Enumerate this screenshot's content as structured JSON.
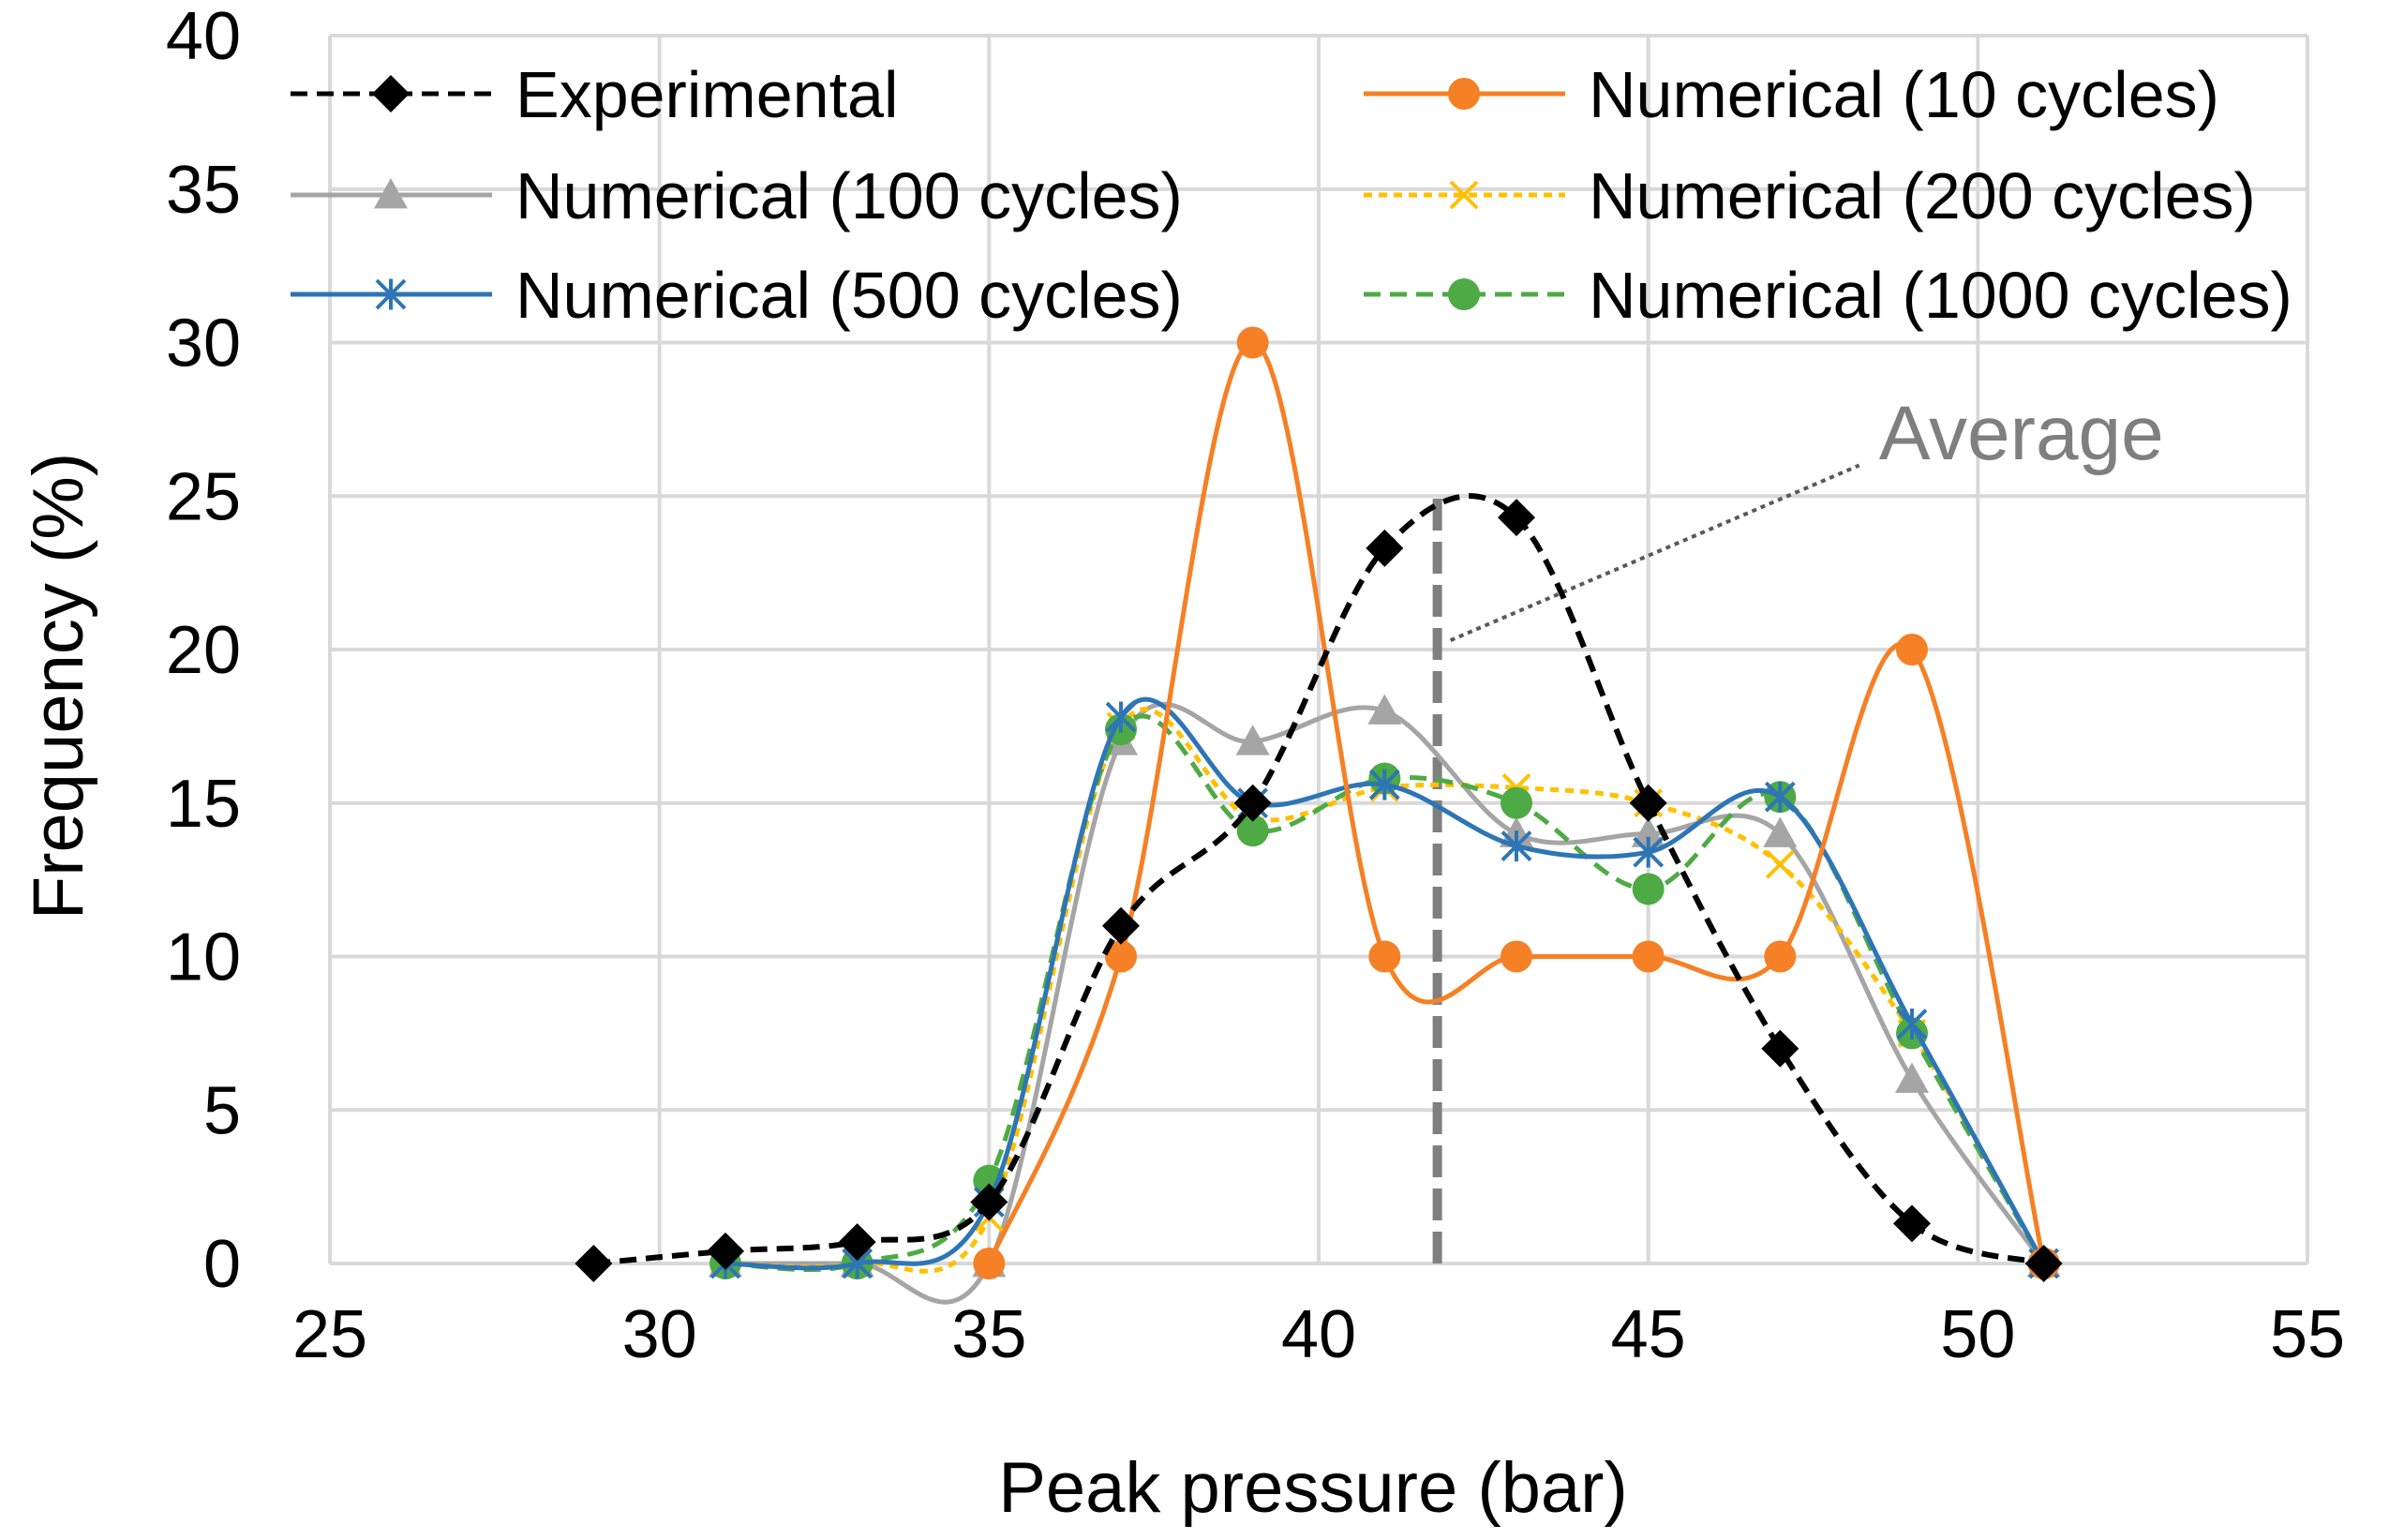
{
  "chart_data": {
    "type": "scatter",
    "xlabel": "Peak pressure (bar)",
    "ylabel": "Frequency (%)",
    "xlim": [
      25,
      55
    ],
    "ylim": [
      0,
      40
    ],
    "xticks": [
      25,
      30,
      35,
      40,
      45,
      50,
      55
    ],
    "yticks": [
      0,
      5,
      10,
      15,
      20,
      25,
      30,
      35,
      40
    ],
    "grid": true,
    "legend_position": "top",
    "series": [
      {
        "name": "Experimental",
        "color": "#000000",
        "line_style": "dashed",
        "marker": "diamond",
        "x": [
          29,
          31,
          33,
          35,
          37,
          39,
          41,
          43,
          45,
          47,
          49,
          51
        ],
        "y": [
          0,
          0.4,
          0.7,
          2,
          11,
          15,
          23.3,
          24.3,
          15,
          7,
          1.3,
          0
        ]
      },
      {
        "name": "Numerical (10 cycles)",
        "color": "#f58025",
        "line_style": "solid",
        "marker": "circle",
        "x": [
          35,
          37,
          39,
          41,
          43,
          45,
          47,
          49,
          51
        ],
        "y": [
          0,
          10,
          30,
          10,
          10,
          10,
          10,
          20,
          0
        ]
      },
      {
        "name": "Numerical (100 cycles)",
        "color": "#a5a5a5",
        "line_style": "solid",
        "marker": "triangle",
        "x": [
          31,
          33,
          35,
          37,
          39,
          41,
          43,
          45,
          47,
          49,
          51
        ],
        "y": [
          0,
          0,
          0,
          17,
          17,
          18,
          14,
          14,
          14,
          6,
          0
        ]
      },
      {
        "name": "Numerical (200 cycles)",
        "color": "#ffc000",
        "line_style": "dotted",
        "marker": "x",
        "x": [
          31,
          33,
          35,
          37,
          39,
          41,
          43,
          45,
          47,
          49,
          51
        ],
        "y": [
          0,
          0,
          1.5,
          17.5,
          14.5,
          15.5,
          15.5,
          15,
          13,
          7.5,
          0
        ]
      },
      {
        "name": "Numerical (500 cycles)",
        "color": "#2e75b6",
        "line_style": "solid",
        "marker": "asterisk",
        "x": [
          31,
          33,
          35,
          37,
          39,
          41,
          43,
          45,
          47,
          49,
          51
        ],
        "y": [
          0,
          0,
          2,
          17.8,
          15,
          15.6,
          13.6,
          13.4,
          15.2,
          7.8,
          0
        ]
      },
      {
        "name": "Numerical (1000 cycles)",
        "color": "#4eaa45",
        "line_style": "dashed",
        "marker": "circle",
        "x": [
          31,
          33,
          35,
          37,
          39,
          41,
          43,
          45,
          47,
          49,
          51
        ],
        "y": [
          0,
          0,
          2.7,
          17.4,
          14.1,
          15.8,
          15,
          12.2,
          15.2,
          7.5,
          0
        ]
      }
    ],
    "annotations": [
      {
        "text": "Average",
        "average_x": 41.8,
        "vertical_line_y_range": [
          0,
          25
        ],
        "pointer_from": [
          42,
          20.3
        ],
        "pointer_to": [
          48.2,
          26
        ],
        "label_at": [
          48.5,
          26.2
        ]
      }
    ]
  }
}
